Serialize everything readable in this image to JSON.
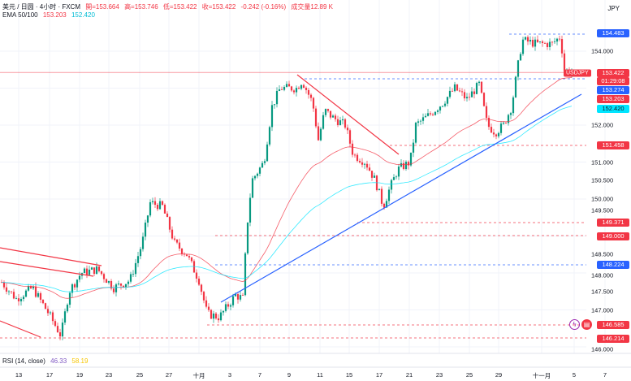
{
  "header": {
    "symbol": "美元 / 日圆 · 4小时 · FXCM",
    "open": "開=153.664",
    "high": "高=153.746",
    "low": "低=153.422",
    "close": "收=153.422",
    "change": "-0.242 (-0.16%)",
    "volume": "成交量12.89 K"
  },
  "ema": {
    "label": "EMA 50/100",
    "ema50": "153.203",
    "ema100": "152.420"
  },
  "rsi": {
    "label": "RSI (14, close)",
    "v1": "46.33",
    "v2": "58.19"
  },
  "currency": "JPY",
  "symbol_tag": "USDJPY",
  "countdown": "01:29:08",
  "colors": {
    "up": "#089981",
    "down": "#f23645",
    "ema50": "#f23645",
    "ema100": "#00e5ff",
    "trend": "#2962ff",
    "blue": "#2962ff"
  },
  "price_labels": [
    {
      "v": "154.483",
      "p": 154.483,
      "c": "#2962ff"
    },
    {
      "v": "153.422",
      "p": 153.422,
      "c": "#f23645"
    },
    {
      "v": "153.274",
      "p": 153.274,
      "c": "#2962ff"
    },
    {
      "v": "153.203",
      "p": 153.203,
      "c": "#f23645"
    },
    {
      "v": "152.420",
      "p": 152.42,
      "c": "#00e5ff"
    },
    {
      "v": "151.458",
      "p": 151.458,
      "c": "#f23645"
    },
    {
      "v": "149.371",
      "p": 149.371,
      "c": "#f23645"
    },
    {
      "v": "149.000",
      "p": 149.0,
      "c": "#f23645"
    },
    {
      "v": "148.224",
      "p": 148.224,
      "c": "#2962ff"
    },
    {
      "v": "146.585",
      "p": 146.585,
      "c": "#f23645"
    },
    {
      "v": "146.214",
      "p": 146.214,
      "c": "#f23645"
    }
  ],
  "ticks": [
    "154.000",
    "152.000",
    "151.000",
    "150.500",
    "150.000",
    "149.500",
    "148.500",
    "148.000",
    "147.500",
    "147.000",
    "146.000"
  ],
  "x_labels": [
    "13",
    "17",
    "19",
    "23",
    "25",
    "27",
    "十月",
    "3",
    "7",
    "9",
    "11",
    "15",
    "17",
    "21",
    "23",
    "25",
    "29",
    "十一月",
    "5",
    "7"
  ],
  "price_path": [
    [
      0,
      147.8
    ],
    [
      20,
      147.3
    ],
    [
      40,
      147.6
    ],
    [
      60,
      146.9
    ],
    [
      75,
      146.3
    ],
    [
      85,
      147.5
    ],
    [
      100,
      148.0
    ],
    [
      120,
      148.1
    ],
    [
      140,
      147.6
    ],
    [
      160,
      147.8
    ],
    [
      175,
      148.8
    ],
    [
      185,
      149.9
    ],
    [
      200,
      149.8
    ],
    [
      215,
      148.8
    ],
    [
      230,
      148.5
    ],
    [
      245,
      147.8
    ],
    [
      255,
      146.9
    ],
    [
      270,
      146.8
    ],
    [
      290,
      147.4
    ],
    [
      300,
      147.3
    ],
    [
      303,
      149.0
    ],
    [
      310,
      150.5
    ],
    [
      325,
      151.0
    ],
    [
      335,
      152.5
    ],
    [
      345,
      153.0
    ],
    [
      365,
      153.0
    ],
    [
      372,
      153.2
    ],
    [
      385,
      152.6
    ],
    [
      392,
      151.6
    ],
    [
      400,
      152.4
    ],
    [
      410,
      152.2
    ],
    [
      425,
      152.0
    ],
    [
      435,
      151.2
    ],
    [
      450,
      151.0
    ],
    [
      462,
      150.5
    ],
    [
      472,
      149.8
    ],
    [
      480,
      150.3
    ],
    [
      490,
      150.8
    ],
    [
      505,
      151.0
    ],
    [
      512,
      152.0
    ],
    [
      530,
      152.3
    ],
    [
      545,
      152.6
    ],
    [
      560,
      153.0
    ],
    [
      575,
      152.7
    ],
    [
      590,
      153.1
    ],
    [
      600,
      152.0
    ],
    [
      610,
      151.8
    ],
    [
      620,
      152.0
    ],
    [
      630,
      152.5
    ],
    [
      637,
      153.5
    ],
    [
      643,
      154.3
    ],
    [
      660,
      154.2
    ],
    [
      680,
      154.2
    ],
    [
      690,
      154.4
    ],
    [
      695,
      153.5
    ],
    [
      705,
      153.42
    ]
  ]
}
